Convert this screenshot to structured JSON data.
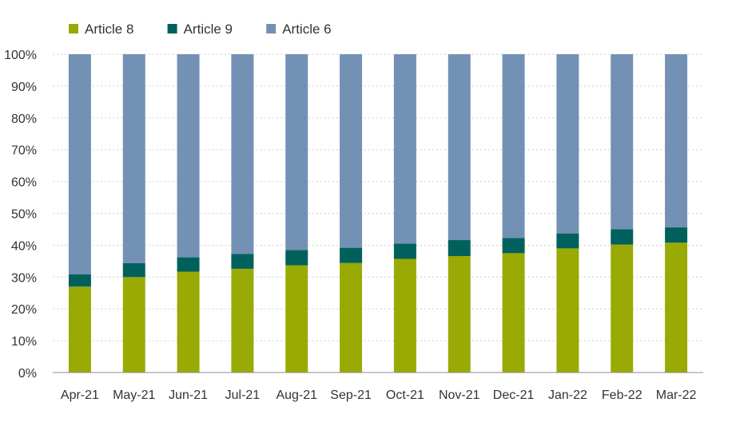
{
  "chart_data": {
    "type": "bar",
    "stacked": true,
    "title": "",
    "xlabel": "",
    "ylabel": "",
    "ylim": [
      0,
      100
    ],
    "y_unit": "%",
    "y_ticks": [
      0,
      10,
      20,
      30,
      40,
      50,
      60,
      70,
      80,
      90,
      100
    ],
    "y_tick_labels": [
      "0%",
      "10%",
      "20%",
      "30%",
      "40%",
      "50%",
      "60%",
      "70%",
      "80%",
      "90%",
      "100%"
    ],
    "grid": "horizontal dotted",
    "legend_position": "top-left",
    "categories": [
      "Apr-21",
      "May-21",
      "Jun-21",
      "Jul-21",
      "Aug-21",
      "Sep-21",
      "Oct-21",
      "Nov-21",
      "Dec-21",
      "Jan-22",
      "Feb-22",
      "Mar-22"
    ],
    "series": [
      {
        "name": "Article 8",
        "color": "#9aaa04",
        "values": [
          27.0,
          30.0,
          31.7,
          32.6,
          33.7,
          34.4,
          35.7,
          36.6,
          37.5,
          39.0,
          40.2,
          40.8
        ]
      },
      {
        "name": "Article 9",
        "color": "#00615c",
        "values": [
          3.9,
          4.4,
          4.5,
          4.7,
          4.8,
          4.8,
          4.8,
          5.0,
          4.8,
          4.7,
          4.8,
          4.8
        ]
      },
      {
        "name": "Article 6",
        "color": "#7391b5",
        "values": [
          69.1,
          65.6,
          63.8,
          62.7,
          61.5,
          60.8,
          59.5,
          58.4,
          57.7,
          56.3,
          55.0,
          54.4
        ]
      }
    ]
  }
}
